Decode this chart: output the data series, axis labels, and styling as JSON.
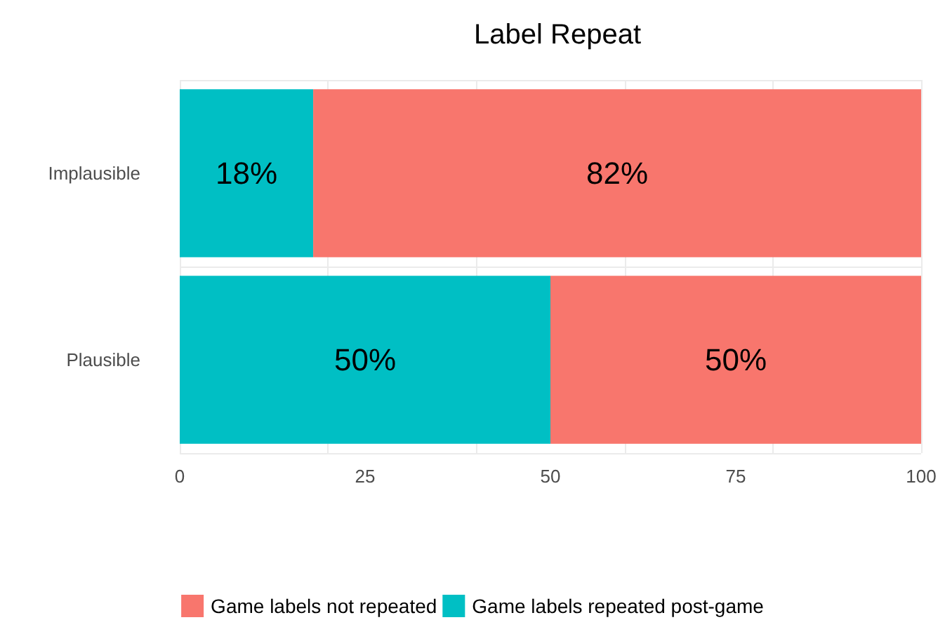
{
  "chart_data": {
    "type": "bar",
    "title": "Label Repeat",
    "orientation": "horizontal",
    "stacked": true,
    "categories": [
      "Implausible",
      "Plausible"
    ],
    "series": [
      {
        "name": "Game labels repeated post-game",
        "color": "#00bfc4",
        "values": [
          18,
          50
        ],
        "value_labels": [
          "18%",
          "50%"
        ]
      },
      {
        "name": "Game labels not repeated",
        "color": "#f8766d",
        "values": [
          82,
          50
        ],
        "value_labels": [
          "82%",
          "50%"
        ]
      }
    ],
    "xlim": [
      0,
      100
    ],
    "xticks": [
      0,
      25,
      50,
      75,
      100
    ],
    "grid": true,
    "legend": "bottom"
  }
}
